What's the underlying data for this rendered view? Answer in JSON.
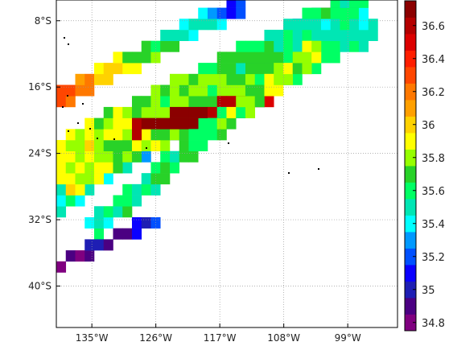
{
  "map": {
    "lon_ticks": [
      {
        "deg": -135,
        "label": "135°W"
      },
      {
        "deg": -126,
        "label": "126°W"
      },
      {
        "deg": -117,
        "label": "117°W"
      },
      {
        "deg": -108,
        "label": "108°W"
      },
      {
        "deg": -99,
        "label": "99°W"
      }
    ],
    "lat_ticks": [
      {
        "deg": -8,
        "label": "8°S"
      },
      {
        "deg": -16,
        "label": "16°S"
      },
      {
        "deg": -24,
        "label": "24°S"
      },
      {
        "deg": -32,
        "label": "32°S"
      },
      {
        "deg": -40,
        "label": "40°S"
      }
    ],
    "lon_range": [
      -140,
      -92
    ],
    "lat_range": [
      -45,
      -5.5
    ],
    "grid": "dotted"
  },
  "colorbar": {
    "ticks": [
      "34.8",
      "35",
      "35.2",
      "35.4",
      "35.6",
      "35.8",
      "36",
      "36.2",
      "36.4",
      "36.6"
    ],
    "range": [
      34.75,
      36.75
    ],
    "palette": [
      "#800080",
      "#4b0082",
      "#1e1eb4",
      "#0a00ff",
      "#0050ff",
      "#0099ff",
      "#00ffff",
      "#00e6b4",
      "#00ff64",
      "#28d228",
      "#96ff00",
      "#ffff00",
      "#ffd200",
      "#ffa000",
      "#ff7800",
      "#ff4600",
      "#ff1e00",
      "#dc0000",
      "#b40000",
      "#8b0000"
    ]
  },
  "chart_data": {
    "type": "heatmap",
    "variable_range": [
      34.8,
      36.7
    ],
    "tracks": [
      {
        "lon_start": -140,
        "lat_start": -30,
        "lon_end": -98,
        "lat_end": -5.5,
        "width_deg": 3.2,
        "start_value": 35.5,
        "end_value": 34.9
      },
      {
        "lon_start": -140,
        "lat_start": -17.5,
        "lon_end": -113,
        "lat_end": -5.5,
        "width_deg": 2.4,
        "start_value": 36.3,
        "end_value": 35.1
      },
      {
        "lon_start": -140,
        "lat_start": -26,
        "lon_end": -96,
        "lat_end": -7,
        "width_deg": 7,
        "start_value": 35.9,
        "end_value": 35.5
      },
      {
        "lon_start": -129,
        "lat_start": -21,
        "lon_end": -110,
        "lat_end": -17.5,
        "width_deg": 2,
        "start_value": 36.7,
        "end_value": 36.6
      },
      {
        "lon_start": -135,
        "lat_start": -33,
        "lon_end": -103,
        "lat_end": -11,
        "width_deg": 2.6,
        "start_value": 35.5,
        "end_value": 35.9
      },
      {
        "lon_start": -140,
        "lat_start": -37.5,
        "lon_end": -125,
        "lat_end": -31.5,
        "width_deg": 1.6,
        "start_value": 34.8,
        "end_value": 35.1
      }
    ]
  }
}
